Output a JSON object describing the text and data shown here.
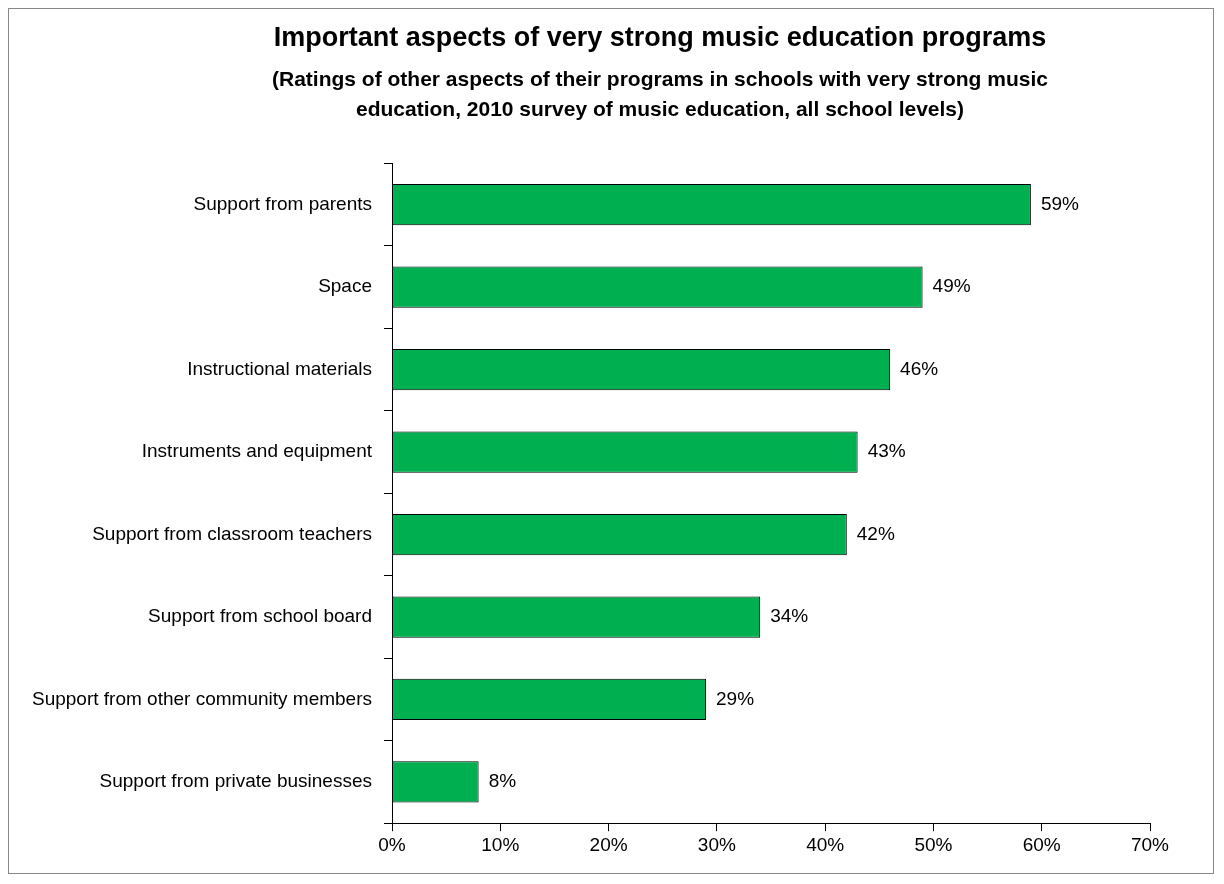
{
  "chart_data": {
    "type": "bar",
    "orientation": "horizontal",
    "title": "Important aspects of very strong music education programs",
    "subtitle": "(Ratings of other aspects of their programs in schools with very strong music education, 2010 survey of music education, all school levels)",
    "categories": [
      "Support from parents",
      "Space",
      "Instructional materials",
      "Instruments and equipment",
      "Support from classroom teachers",
      "Support from school board",
      "Support from other community members",
      "Support from private businesses"
    ],
    "values": [
      59,
      49,
      46,
      43,
      42,
      34,
      29,
      8
    ],
    "color": "#00b050",
    "value_labels": [
      "59%",
      "49%",
      "46%",
      "43%",
      "42%",
      "34%",
      "29%",
      "8%"
    ],
    "xlim": [
      0,
      70
    ],
    "xticks": [
      {
        "value": 0,
        "label": "0%"
      },
      {
        "value": 10,
        "label": "10%"
      },
      {
        "value": 20,
        "label": "20%"
      },
      {
        "value": 30,
        "label": "30%"
      },
      {
        "value": 40,
        "label": "40%"
      },
      {
        "value": 50,
        "label": "50%"
      },
      {
        "value": 60,
        "label": "60%"
      },
      {
        "value": 70,
        "label": "70%"
      }
    ],
    "grid": false,
    "legend": false
  }
}
